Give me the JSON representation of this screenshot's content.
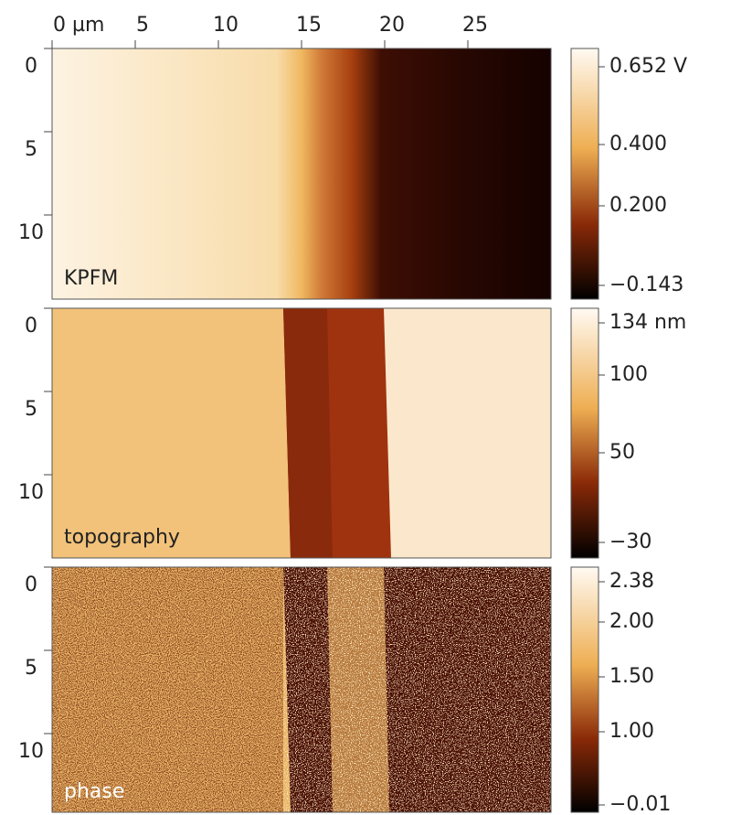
{
  "x_axis": {
    "ticks": [
      "0 µm",
      "5",
      "10",
      "15",
      "20",
      "25"
    ]
  },
  "panels": [
    {
      "label": "KPFM",
      "y_ticks": [
        "0",
        "5",
        "10"
      ],
      "colorbar_ticks": [
        "0.652 V",
        "0.400",
        "0.200",
        "−0.143"
      ]
    },
    {
      "label": "topography",
      "y_ticks": [
        "0",
        "5",
        "10"
      ],
      "colorbar_ticks": [
        "134 nm",
        "100",
        "50",
        "−30"
      ]
    },
    {
      "label": "phase",
      "y_ticks": [
        "0",
        "5",
        "10"
      ],
      "colorbar_ticks": [
        "2.38",
        "2.00",
        "1.50",
        "1.00",
        "−0.01"
      ]
    }
  ]
}
